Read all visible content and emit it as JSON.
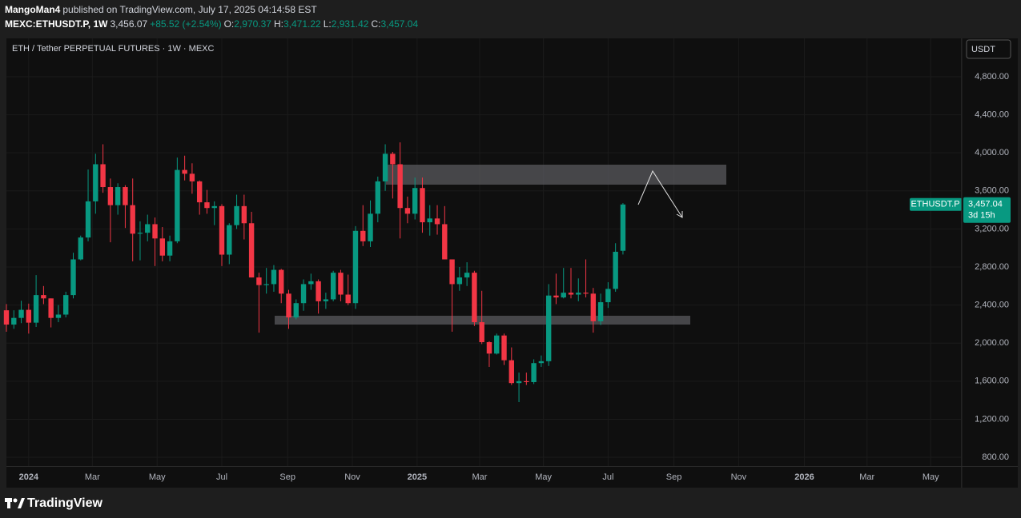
{
  "header": {
    "author": "MangoMan4",
    "published": "published on TradingView.com, July 17, 2025 04:14:58 EST",
    "symbol": "MEXC:ETHUSDT.P, 1W",
    "last": "3,456.07",
    "change": "+85.52 (+2.54%)",
    "open_label": "O:",
    "open": "2,970.37",
    "high_label": "H:",
    "high": "3,471.22",
    "low_label": "L:",
    "low": "2,931.42",
    "close_label": "C:",
    "close": "3,457.04"
  },
  "footer": {
    "logo": "TradingView"
  },
  "chart_data": {
    "type": "candlestick",
    "title": "ETH / Tether PERPETUAL FUTURES · 1W · MEXC",
    "currency": "USDT",
    "price_tag": {
      "symbol": "ETHUSDT.P",
      "price": "3,457.04",
      "countdown": "3d 15h"
    },
    "up_color": "#089981",
    "down_color": "#f23645",
    "grid": true,
    "open": [
      2345,
      2195,
      2265,
      2350,
      2215,
      2505,
      2470,
      2265,
      2300,
      2505,
      2880,
      3110,
      3490,
      3880,
      3640,
      3450,
      3640,
      3450,
      3150,
      3160,
      3250,
      3100,
      2920,
      3070,
      3820,
      3780,
      3700,
      3480,
      3420,
      3440,
      2930,
      3240,
      3440,
      3260,
      2690,
      2610,
      2620,
      2770,
      2520,
      2270,
      2420,
      2620,
      2650,
      2440,
      2460,
      2740,
      2510,
      2420,
      3180,
      3070,
      3360,
      3700,
      3990,
      3880,
      3420,
      3360,
      3630,
      3270,
      3310,
      3250,
      2880,
      2620,
      2690,
      2740,
      2220,
      2010,
      1890,
      2080,
      1820,
      1580,
      1600,
      1590,
      1790,
      1810,
      2500,
      2480,
      2530,
      2510,
      2530,
      2520,
      2230,
      2430,
      2570,
      2970.37
    ],
    "high": [
      2410,
      2345,
      2445,
      2415,
      2715,
      2600,
      2470,
      2400,
      2540,
      2950,
      3130,
      3825,
      3990,
      4090,
      3730,
      3680,
      3660,
      3730,
      3280,
      3350,
      3320,
      3220,
      3130,
      3950,
      3970,
      3890,
      3710,
      3610,
      3490,
      3460,
      3260,
      3560,
      3560,
      3380,
      2740,
      2790,
      2820,
      2780,
      2560,
      2460,
      2670,
      2730,
      2670,
      2530,
      2760,
      2770,
      2720,
      3230,
      3450,
      3500,
      3750,
      4090,
      4010,
      4110,
      3540,
      3740,
      3740,
      3450,
      3450,
      3440,
      2880,
      2800,
      2850,
      2760,
      2550,
      2020,
      2100,
      2100,
      1955,
      1690,
      1690,
      1830,
      1870,
      2620,
      2730,
      2790,
      2790,
      2680,
      2880,
      2580,
      2520,
      2640,
      3050,
      3471.22
    ],
    "low": [
      2120,
      2150,
      2210,
      2100,
      2170,
      2410,
      2165,
      2220,
      2270,
      2470,
      2870,
      3070,
      3360,
      3580,
      3060,
      3350,
      3210,
      2860,
      2870,
      3070,
      2810,
      2860,
      2860,
      3050,
      3710,
      3570,
      3350,
      3360,
      3240,
      2810,
      2830,
      3200,
      3090,
      2690,
      2110,
      2520,
      2540,
      2420,
      2150,
      2250,
      2340,
      2560,
      2310,
      2360,
      2440,
      2440,
      2400,
      2360,
      3020,
      3010,
      3270,
      3600,
      3520,
      3100,
      3260,
      3300,
      3160,
      3130,
      3140,
      2880,
      2120,
      2550,
      2600,
      2180,
      1990,
      1750,
      1880,
      1770,
      1560,
      1380,
      1560,
      1570,
      1750,
      1760,
      2410,
      2470,
      2470,
      2440,
      2480,
      2110,
      2190,
      2370,
      2540,
      2931.42
    ],
    "close": [
      2195,
      2265,
      2350,
      2215,
      2505,
      2470,
      2265,
      2300,
      2505,
      2880,
      3110,
      3490,
      3880,
      3640,
      3450,
      3640,
      3450,
      3150,
      3160,
      3250,
      3100,
      2920,
      3070,
      3820,
      3780,
      3700,
      3480,
      3420,
      3440,
      2930,
      3240,
      3440,
      3260,
      2690,
      2610,
      2620,
      2770,
      2520,
      2270,
      2420,
      2620,
      2650,
      2440,
      2460,
      2740,
      2510,
      2420,
      3180,
      3070,
      3360,
      3700,
      3990,
      3880,
      3420,
      3360,
      3630,
      3270,
      3310,
      3250,
      2880,
      2620,
      2690,
      2740,
      2220,
      2010,
      1890,
      2080,
      1820,
      1580,
      1600,
      1590,
      1790,
      1810,
      2500,
      2480,
      2530,
      2510,
      2530,
      2520,
      2230,
      2430,
      2570,
      2960,
      3457.04
    ],
    "xlim": [
      0,
      128.5
    ],
    "xticks": [
      {
        "value": 3,
        "label": "2024"
      },
      {
        "value": 11.57,
        "label": "Mar"
      },
      {
        "value": 20.29,
        "label": "May"
      },
      {
        "value": 29,
        "label": "Jul"
      },
      {
        "value": 37.86,
        "label": "Sep"
      },
      {
        "value": 46.57,
        "label": "Nov"
      },
      {
        "value": 55.29,
        "label": "2025"
      },
      {
        "value": 63.71,
        "label": "Mar"
      },
      {
        "value": 72.29,
        "label": "May"
      },
      {
        "value": 81,
        "label": "Jul"
      },
      {
        "value": 89.86,
        "label": "Sep"
      },
      {
        "value": 98.57,
        "label": "Nov"
      },
      {
        "value": 107.43,
        "label": "2026"
      },
      {
        "value": 115.86,
        "label": "Mar"
      },
      {
        "value": 124.43,
        "label": "May"
      }
    ],
    "ylim": [
      708,
      5203
    ],
    "yticks": [
      {
        "value": 800,
        "label": "800.00"
      },
      {
        "value": 1200,
        "label": "1,200.00"
      },
      {
        "value": 1600,
        "label": "1,600.00"
      },
      {
        "value": 2000,
        "label": "2,000.00"
      },
      {
        "value": 2400,
        "label": "2,400.00"
      },
      {
        "value": 2800,
        "label": "2,800.00"
      },
      {
        "value": 3200,
        "label": "3,200.00"
      },
      {
        "value": 3600,
        "label": "3,600.00"
      },
      {
        "value": 4000,
        "label": "4,000.00"
      },
      {
        "value": 4400,
        "label": "4,400.00"
      },
      {
        "value": 4800,
        "label": "4,800.00"
      }
    ]
  }
}
